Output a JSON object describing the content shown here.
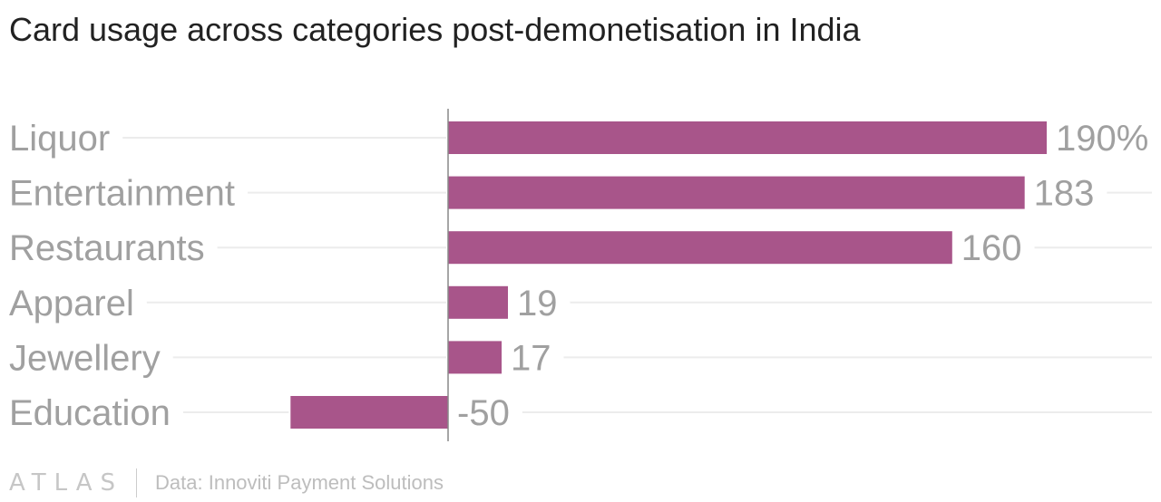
{
  "chart_data": {
    "type": "bar",
    "orientation": "horizontal",
    "title": "Card usage across categories post-demonetisation in India",
    "categories": [
      "Liquor",
      "Entertainment",
      "Restaurants",
      "Apparel",
      "Jewellery",
      "Education"
    ],
    "values": [
      190,
      183,
      160,
      19,
      17,
      -50
    ],
    "value_labels": [
      "190%",
      "183",
      "160",
      "19",
      "17",
      "-50"
    ],
    "unit": "%",
    "xlim": [
      -50,
      190
    ],
    "xlabel": "",
    "ylabel": "",
    "grid": true,
    "legend": "none",
    "bar_color": "#a8558a"
  },
  "footer": {
    "logo": "ATLAS",
    "source": "Data: Innoviti Payment Solutions"
  }
}
